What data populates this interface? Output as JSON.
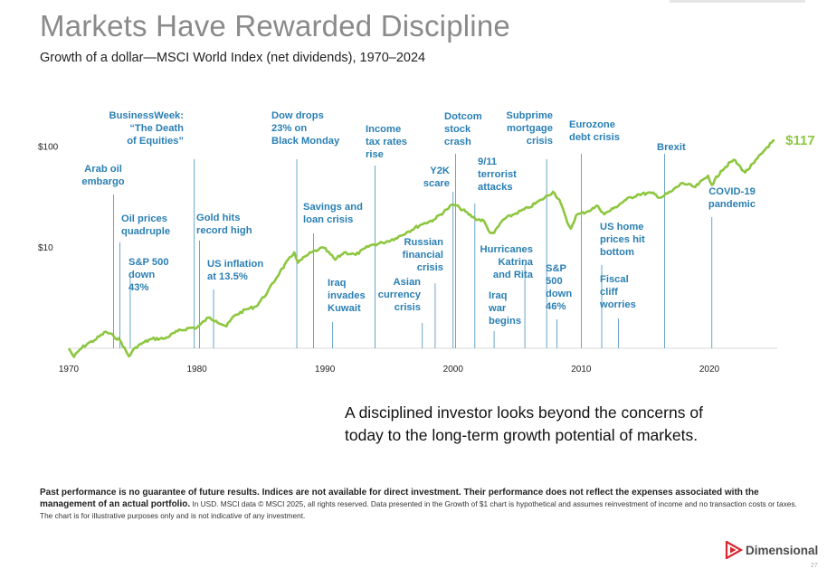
{
  "page": {
    "title": "Markets Have Rewarded Discipline",
    "subtitle": "Growth of a dollar—MSCI World Index (net dividends), 1970–2024",
    "tagline": "A disciplined investor looks beyond the concerns of today to the long-term growth potential of markets.",
    "disclaimer_bold": "Past performance is no guarantee of future results. Indices are not available for direct investment. Their performance does not reflect the expenses associated with the management of an actual portfolio.",
    "disclaimer_rest": " In USD. MSCI data © MSCI 2025, all rights reserved. Data presented in the Growth of $1 chart is hypothetical and assumes reinvestment of income and no transaction costs or taxes. The chart is for illustrative purposes only and is not indicative of any investment.",
    "logo_text": "Dimensional",
    "logo_icon": "dimensional-logo-icon",
    "page_number": "27"
  },
  "chart_data": {
    "type": "line",
    "title": "Markets Have Rewarded Discipline",
    "subtitle": "Growth of a dollar—MSCI World Index (net dividends), 1970–2024",
    "y_scale": "log",
    "ylim": [
      1,
      130
    ],
    "xlim": [
      1970,
      2025.3
    ],
    "x_ticks": [
      "1970",
      "1980",
      "1990",
      "2000",
      "2010",
      "2020"
    ],
    "y_ticks": [
      {
        "value": 10,
        "label": "$10"
      },
      {
        "value": 100,
        "label": "$100"
      }
    ],
    "end_label": "$117",
    "line_color": "#8dc63f",
    "annotation_color": "#2a7fb3",
    "series": [
      {
        "points": [
          [
            1970.0,
            1.0
          ],
          [
            1970.4,
            0.82
          ],
          [
            1970.9,
            0.98
          ],
          [
            1971.5,
            1.12
          ],
          [
            1972.0,
            1.2
          ],
          [
            1972.9,
            1.46
          ],
          [
            1973.5,
            1.32
          ],
          [
            1974.0,
            1.2
          ],
          [
            1974.7,
            0.83
          ],
          [
            1975.2,
            1.02
          ],
          [
            1975.9,
            1.15
          ],
          [
            1976.5,
            1.24
          ],
          [
            1977.5,
            1.25
          ],
          [
            1978.5,
            1.48
          ],
          [
            1979.5,
            1.6
          ],
          [
            1980.0,
            1.6
          ],
          [
            1980.9,
            2.02
          ],
          [
            1981.5,
            1.88
          ],
          [
            1982.3,
            1.65
          ],
          [
            1982.9,
            2.1
          ],
          [
            1983.9,
            2.45
          ],
          [
            1984.6,
            2.6
          ],
          [
            1985.5,
            3.6
          ],
          [
            1986.5,
            5.8
          ],
          [
            1987.6,
            9.0
          ],
          [
            1987.9,
            7.1
          ],
          [
            1988.7,
            8.6
          ],
          [
            1989.5,
            9.6
          ],
          [
            1989.9,
            10.0
          ],
          [
            1990.8,
            7.6
          ],
          [
            1991.5,
            9.0
          ],
          [
            1992.4,
            8.5
          ],
          [
            1993.5,
            10.5
          ],
          [
            1994.5,
            11.2
          ],
          [
            1995.5,
            12.4
          ],
          [
            1996.5,
            14.5
          ],
          [
            1997.5,
            17.0
          ],
          [
            1998.5,
            19.0
          ],
          [
            1999.5,
            24.0
          ],
          [
            2000.0,
            27.0
          ],
          [
            2000.5,
            25.0
          ],
          [
            2001.7,
            19.5
          ],
          [
            2002.4,
            18.5
          ],
          [
            2002.8,
            14.5
          ],
          [
            2003.2,
            14.0
          ],
          [
            2003.9,
            19.0
          ],
          [
            2004.9,
            22.0
          ],
          [
            2005.9,
            25.0
          ],
          [
            2006.9,
            30.0
          ],
          [
            2007.8,
            36.0
          ],
          [
            2008.3,
            30.0
          ],
          [
            2008.9,
            18.0
          ],
          [
            2009.2,
            15.5
          ],
          [
            2009.6,
            21.0
          ],
          [
            2010.5,
            23.0
          ],
          [
            2011.3,
            26.0
          ],
          [
            2011.8,
            21.5
          ],
          [
            2012.5,
            24.5
          ],
          [
            2013.5,
            30.0
          ],
          [
            2014.5,
            34.0
          ],
          [
            2015.5,
            35.0
          ],
          [
            2016.2,
            31.5
          ],
          [
            2017.0,
            36.0
          ],
          [
            2017.9,
            44.0
          ],
          [
            2018.9,
            40.0
          ],
          [
            2019.9,
            52.0
          ],
          [
            2020.2,
            42.0
          ],
          [
            2020.9,
            58.0
          ],
          [
            2021.9,
            75.0
          ],
          [
            2022.8,
            56.0
          ],
          [
            2023.5,
            70.0
          ],
          [
            2024.5,
            100.0
          ],
          [
            2025.1,
            117.0
          ]
        ]
      }
    ],
    "annotations": [
      {
        "year": 1973.5,
        "lines": [
          "Arab oil",
          "embargo"
        ],
        "align": "middle"
      },
      {
        "year": 1974.0,
        "lines": [
          "Oil prices",
          "quadruple"
        ],
        "align": "start"
      },
      {
        "year": 1974.8,
        "lines": [
          "S&P 500",
          "down",
          "43%"
        ],
        "align": "start"
      },
      {
        "year": 1979.8,
        "lines": [
          "BusinessWeek:",
          "“The Death",
          "of Equities”"
        ],
        "align": "end"
      },
      {
        "year": 1980.2,
        "lines": [
          "Gold hits",
          "record high"
        ],
        "align": "start"
      },
      {
        "year": 1981.3,
        "lines": [
          "US inflation",
          "at 13.5%"
        ],
        "align": "start"
      },
      {
        "year": 1987.8,
        "lines": [
          "Dow drops",
          "23% on",
          "Black Monday"
        ],
        "align": "start"
      },
      {
        "year": 1989.1,
        "lines": [
          "Savings and",
          "loan crisis"
        ],
        "align": "start"
      },
      {
        "year": 1990.6,
        "lines": [
          "Iraq",
          "invades",
          "Kuwait"
        ],
        "align": "start"
      },
      {
        "year": 1993.9,
        "lines": [
          "Income",
          "tax rates",
          "rise"
        ],
        "align": "start"
      },
      {
        "year": 1997.6,
        "lines": [
          "Asian",
          "currency",
          "crisis"
        ],
        "align": "end"
      },
      {
        "year": 1998.6,
        "lines": [
          "Russian",
          "financial",
          "crisis"
        ],
        "align": "end"
      },
      {
        "year": 2000.0,
        "lines": [
          "Y2K",
          "scare"
        ],
        "align": "end"
      },
      {
        "year": 2000.2,
        "lines": [
          "Dotcom",
          "stock",
          "crash"
        ],
        "align": "start"
      },
      {
        "year": 2001.7,
        "lines": [
          "9/11",
          "terrorist",
          "attacks"
        ],
        "align": "start"
      },
      {
        "year": 2003.2,
        "lines": [
          "Iraq",
          "war",
          "begins"
        ],
        "align": "start"
      },
      {
        "year": 2005.6,
        "lines": [
          "Hurricanes",
          "Katrina",
          "and Rita"
        ],
        "align": "end"
      },
      {
        "year": 2007.3,
        "lines": [
          "Subprime",
          "mortgage",
          "crisis"
        ],
        "align": "end"
      },
      {
        "year": 2008.1,
        "lines": [
          "S&P",
          "500",
          "down",
          "46%"
        ],
        "align": "start"
      },
      {
        "year": 2010.0,
        "lines": [
          "Eurozone",
          "debt crisis"
        ],
        "align": "start"
      },
      {
        "year": 2011.6,
        "lines": [
          "US home",
          "prices hit",
          "bottom"
        ],
        "align": "start"
      },
      {
        "year": 2012.9,
        "lines": [
          "Fiscal",
          "cliff",
          "worries"
        ],
        "align": "start"
      },
      {
        "year": 2016.5,
        "lines": [
          "Brexit"
        ],
        "align": "start"
      },
      {
        "year": 2020.2,
        "lines": [
          "COVID-19",
          "pandemic"
        ],
        "align": "middle"
      }
    ]
  }
}
